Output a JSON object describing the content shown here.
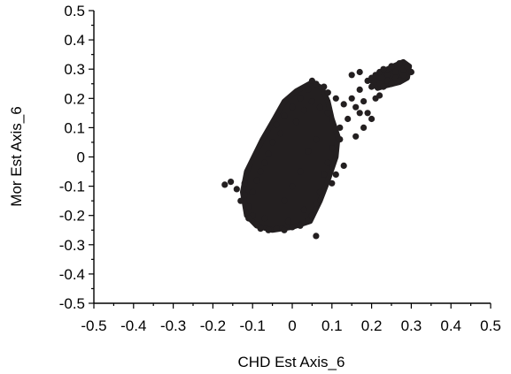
{
  "chart_data": {
    "type": "scatter",
    "xlabel": "CHD Est Axis_6",
    "ylabel": "Mor Est Axis_6",
    "xlim": [
      -0.5,
      0.5
    ],
    "ylim": [
      -0.5,
      0.5
    ],
    "x_ticks": [
      "-0.5",
      "-0.4",
      "-0.3",
      "-0.2",
      "-0.1",
      "0",
      "0.1",
      "0.2",
      "0.3",
      "0.4",
      "0.5"
    ],
    "y_ticks": [
      "0.5",
      "0.4",
      "0.3",
      "0.2",
      "0.1",
      "0",
      "-0.1",
      "-0.2",
      "-0.3",
      "-0.4",
      "-0.5"
    ],
    "grid": false,
    "legend": false,
    "marker_color": "#231f20",
    "series": [
      {
        "points": [
          [
            -0.17,
            -0.095
          ],
          [
            -0.155,
            -0.085
          ],
          [
            -0.14,
            -0.11
          ],
          [
            -0.12,
            -0.13
          ],
          [
            -0.11,
            -0.17
          ],
          [
            -0.1,
            -0.2
          ],
          [
            -0.09,
            -0.23
          ],
          [
            -0.08,
            -0.245
          ],
          [
            -0.06,
            -0.25
          ],
          [
            -0.04,
            -0.245
          ],
          [
            -0.02,
            -0.25
          ],
          [
            0.0,
            -0.24
          ],
          [
            0.02,
            -0.235
          ],
          [
            0.04,
            -0.22
          ],
          [
            0.06,
            -0.27
          ],
          [
            -0.05,
            0.05
          ],
          [
            -0.03,
            0.08
          ],
          [
            -0.04,
            0.11
          ],
          [
            -0.02,
            0.14
          ],
          [
            0.0,
            0.17
          ],
          [
            0.02,
            0.2
          ],
          [
            0.04,
            0.23
          ],
          [
            0.05,
            0.26
          ],
          [
            0.06,
            0.25
          ],
          [
            0.08,
            0.24
          ],
          [
            -0.07,
            -0.02
          ],
          [
            -0.06,
            0.01
          ],
          [
            -0.08,
            -0.05
          ],
          [
            -0.09,
            -0.08
          ],
          [
            -0.1,
            -0.12
          ],
          [
            0.09,
            0.22
          ],
          [
            0.11,
            0.2
          ],
          [
            0.13,
            0.18
          ],
          [
            0.15,
            0.2
          ],
          [
            0.17,
            0.23
          ],
          [
            0.19,
            0.26
          ],
          [
            0.2,
            0.24
          ],
          [
            0.15,
            0.28
          ],
          [
            0.17,
            0.29
          ],
          [
            0.2,
            0.27
          ],
          [
            0.21,
            0.28
          ],
          [
            0.22,
            0.29
          ],
          [
            0.23,
            0.3
          ],
          [
            0.24,
            0.28
          ],
          [
            0.25,
            0.31
          ],
          [
            0.26,
            0.29
          ],
          [
            0.27,
            0.32
          ],
          [
            0.28,
            0.3
          ],
          [
            0.29,
            0.31
          ],
          [
            0.3,
            0.29
          ],
          [
            0.22,
            0.25
          ],
          [
            0.24,
            0.26
          ],
          [
            0.26,
            0.27
          ],
          [
            0.28,
            0.28
          ],
          [
            0.18,
            0.19
          ],
          [
            0.16,
            0.17
          ],
          [
            0.14,
            0.13
          ],
          [
            0.19,
            0.15
          ],
          [
            0.22,
            0.21
          ],
          [
            0.2,
            0.13
          ],
          [
            0.18,
            0.1
          ],
          [
            0.16,
            0.07
          ],
          [
            0.12,
            0.06
          ],
          [
            0.1,
            0.03
          ],
          [
            0.09,
            -0.02
          ],
          [
            0.08,
            -0.06
          ],
          [
            0.1,
            -0.09
          ],
          [
            0.07,
            -0.12
          ],
          [
            0.06,
            -0.16
          ],
          [
            0.12,
            0.1
          ],
          [
            0.13,
            -0.03
          ],
          [
            0.11,
            -0.06
          ],
          [
            0.05,
            -0.2
          ],
          [
            0.03,
            -0.18
          ],
          [
            0.17,
            0.15
          ],
          [
            0.21,
            0.2
          ],
          [
            0.23,
            0.24
          ],
          [
            0.25,
            0.25
          ],
          [
            0.27,
            0.26
          ],
          [
            -0.12,
            -0.09
          ],
          [
            -0.13,
            -0.15
          ],
          [
            -0.11,
            -0.21
          ],
          [
            -0.07,
            -0.21
          ],
          [
            -0.01,
            -0.22
          ],
          [
            0.01,
            0.12
          ],
          [
            0.03,
            0.16
          ],
          [
            0.05,
            0.19
          ],
          [
            0.07,
            0.17
          ],
          [
            0.09,
            0.15
          ],
          [
            0.02,
            -0.05
          ],
          [
            0.0,
            -0.1
          ],
          [
            -0.02,
            -0.15
          ],
          [
            0.04,
            0.02
          ],
          [
            0.06,
            0.06
          ]
        ]
      }
    ]
  }
}
